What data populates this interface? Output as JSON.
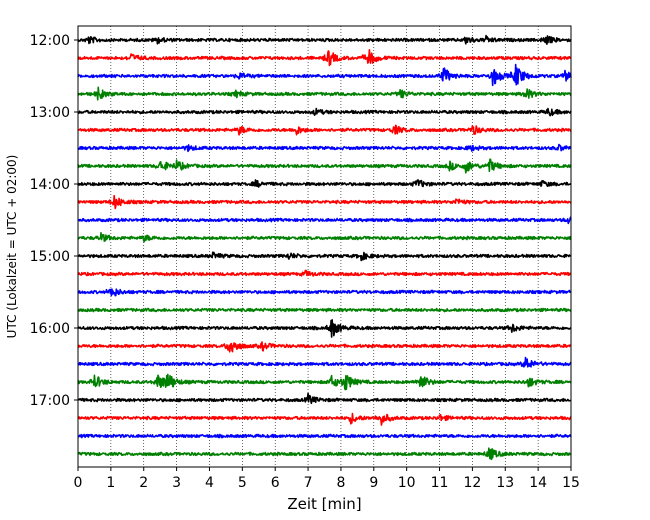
{
  "chart_data": {
    "type": "line",
    "xlabel": "Zeit  [min]",
    "ylabel": "UTC (Lokalzeit = UTC + 02:00)",
    "xlim": [
      0,
      15
    ],
    "x_ticks": [
      0,
      1,
      2,
      3,
      4,
      5,
      6,
      7,
      8,
      9,
      10,
      11,
      12,
      13,
      14,
      15
    ],
    "y_tick_labels": [
      "12:00",
      "13:00",
      "14:00",
      "15:00",
      "16:00",
      "17:00"
    ],
    "trace_interval_minutes": 15,
    "colors": [
      "#000000",
      "#ff0000",
      "#0000ff",
      "#008000"
    ],
    "grid": "vertical dotted lines at each minute",
    "traces": [
      {
        "start": "12:00",
        "color": "#000000",
        "events": [
          {
            "t": 0.3,
            "a": 4
          },
          {
            "t": 2.4,
            "a": 3
          },
          {
            "t": 11.8,
            "a": 4
          },
          {
            "t": 12.4,
            "a": 3
          },
          {
            "t": 14.2,
            "a": 5
          }
        ]
      },
      {
        "start": "12:15",
        "color": "#ff0000",
        "events": [
          {
            "t": 1.6,
            "a": 4
          },
          {
            "t": 7.6,
            "a": 9
          },
          {
            "t": 8.8,
            "a": 10
          }
        ]
      },
      {
        "start": "12:30",
        "color": "#0000ff",
        "events": [
          {
            "t": 4.9,
            "a": 3
          },
          {
            "t": 11.1,
            "a": 9
          },
          {
            "t": 12.6,
            "a": 11
          },
          {
            "t": 13.3,
            "a": 13
          },
          {
            "t": 14.8,
            "a": 5
          }
        ]
      },
      {
        "start": "12:45",
        "color": "#008000",
        "events": [
          {
            "t": 0.6,
            "a": 6
          },
          {
            "t": 4.8,
            "a": 3
          },
          {
            "t": 9.8,
            "a": 4
          },
          {
            "t": 13.6,
            "a": 6
          }
        ]
      },
      {
        "start": "13:00",
        "color": "#000000",
        "events": [
          {
            "t": 7.2,
            "a": 3
          },
          {
            "t": 14.3,
            "a": 4
          }
        ]
      },
      {
        "start": "13:15",
        "color": "#ff0000",
        "events": [
          {
            "t": 4.9,
            "a": 4
          },
          {
            "t": 6.6,
            "a": 5
          },
          {
            "t": 9.6,
            "a": 5
          },
          {
            "t": 12.0,
            "a": 5
          }
        ]
      },
      {
        "start": "13:30",
        "color": "#0000ff",
        "events": [
          {
            "t": 3.3,
            "a": 3
          },
          {
            "t": 11.9,
            "a": 3
          },
          {
            "t": 14.6,
            "a": 3
          }
        ]
      },
      {
        "start": "13:45",
        "color": "#008000",
        "events": [
          {
            "t": 2.5,
            "a": 6
          },
          {
            "t": 3.0,
            "a": 5
          },
          {
            "t": 11.3,
            "a": 4
          },
          {
            "t": 11.8,
            "a": 6
          },
          {
            "t": 12.5,
            "a": 7
          }
        ]
      },
      {
        "start": "14:00",
        "color": "#000000",
        "events": [
          {
            "t": 5.4,
            "a": 3
          },
          {
            "t": 10.3,
            "a": 5
          },
          {
            "t": 14.1,
            "a": 3
          }
        ]
      },
      {
        "start": "14:15",
        "color": "#ff0000",
        "events": [
          {
            "t": 1.1,
            "a": 7
          },
          {
            "t": 11.5,
            "a": 3
          }
        ]
      },
      {
        "start": "14:30",
        "color": "#0000ff",
        "events": [
          {
            "t": 14.9,
            "a": 3
          }
        ]
      },
      {
        "start": "14:45",
        "color": "#008000",
        "events": [
          {
            "t": 0.7,
            "a": 4
          },
          {
            "t": 2.0,
            "a": 3
          }
        ]
      },
      {
        "start": "15:00",
        "color": "#000000",
        "events": [
          {
            "t": 4.1,
            "a": 3
          },
          {
            "t": 6.4,
            "a": 3
          },
          {
            "t": 8.6,
            "a": 4
          }
        ]
      },
      {
        "start": "15:15",
        "color": "#ff0000",
        "events": [
          {
            "t": 6.9,
            "a": 3
          }
        ]
      },
      {
        "start": "15:30",
        "color": "#0000ff",
        "events": [
          {
            "t": 1.0,
            "a": 6
          }
        ]
      },
      {
        "start": "15:45",
        "color": "#008000",
        "events": []
      },
      {
        "start": "16:00",
        "color": "#000000",
        "events": [
          {
            "t": 7.7,
            "a": 10
          },
          {
            "t": 13.2,
            "a": 4
          }
        ]
      },
      {
        "start": "16:15",
        "color": "#ff0000",
        "events": [
          {
            "t": 4.6,
            "a": 11
          },
          {
            "t": 5.6,
            "a": 4
          }
        ]
      },
      {
        "start": "16:30",
        "color": "#0000ff",
        "events": [
          {
            "t": 13.6,
            "a": 7
          }
        ]
      },
      {
        "start": "16:45",
        "color": "#008000",
        "events": [
          {
            "t": 0.5,
            "a": 7
          },
          {
            "t": 2.4,
            "a": 8
          },
          {
            "t": 2.7,
            "a": 10
          },
          {
            "t": 7.7,
            "a": 6
          },
          {
            "t": 8.1,
            "a": 10
          },
          {
            "t": 10.4,
            "a": 9
          },
          {
            "t": 13.7,
            "a": 5
          }
        ]
      },
      {
        "start": "17:00",
        "color": "#000000",
        "events": [
          {
            "t": 7.0,
            "a": 5
          }
        ]
      },
      {
        "start": "17:15",
        "color": "#ff0000",
        "events": [
          {
            "t": 8.3,
            "a": 5
          },
          {
            "t": 9.2,
            "a": 7
          },
          {
            "t": 11.0,
            "a": 3
          }
        ]
      },
      {
        "start": "17:30",
        "color": "#0000ff",
        "events": []
      },
      {
        "start": "17:45",
        "color": "#008000",
        "events": [
          {
            "t": 12.5,
            "a": 7
          }
        ]
      }
    ]
  }
}
